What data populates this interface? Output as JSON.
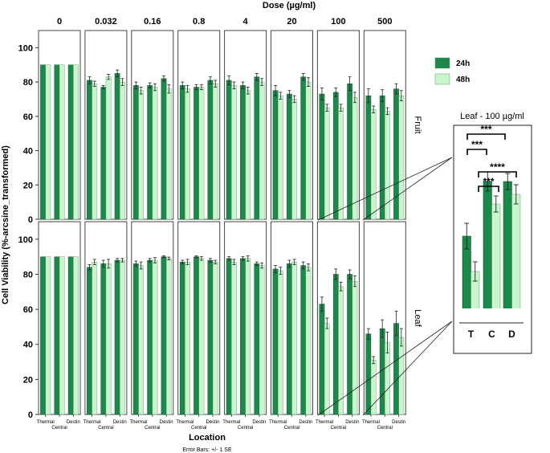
{
  "chart_data": {
    "type": "bar",
    "title": "Dose (µg/ml)",
    "xlabel": "Location",
    "ylabel": "Cell Viability (%-arcsine_transformed)",
    "footnote": "Error Bars: +/- 1 SE",
    "ylim": [
      0,
      110
    ],
    "yticks": [
      0,
      20,
      40,
      60,
      80,
      100
    ],
    "doses": [
      "0",
      "0.032",
      "0.16",
      "0.8",
      "4",
      "20",
      "100",
      "500"
    ],
    "categories": [
      "Thermal",
      "Central",
      "Destin"
    ],
    "strips": [
      "Fruit",
      "Leaf"
    ],
    "legend": {
      "items": [
        {
          "name": "24h",
          "color": "#1a8a4a"
        },
        {
          "name": "48h",
          "color": "#c9f5cd"
        }
      ]
    },
    "panels": {
      "Fruit": [
        {
          "dose": "0",
          "h24": [
            90,
            90,
            90
          ],
          "h48": [
            90,
            90,
            90
          ],
          "e24": [
            0,
            0,
            0
          ],
          "e48": [
            0,
            0,
            0
          ]
        },
        {
          "dose": "0.032",
          "h24": [
            81,
            77,
            85
          ],
          "h48": [
            79,
            83,
            80
          ],
          "e24": [
            2,
            1,
            2
          ],
          "e48": [
            1.5,
            1.5,
            2
          ]
        },
        {
          "dose": "0.16",
          "h24": [
            78,
            78,
            82
          ],
          "h48": [
            75,
            77,
            76
          ],
          "e24": [
            2,
            1.5,
            1.5
          ],
          "e48": [
            2,
            2,
            2.5
          ]
        },
        {
          "dose": "0.8",
          "h24": [
            78,
            77,
            81
          ],
          "h48": [
            76,
            77,
            79
          ],
          "e24": [
            2,
            1.5,
            2
          ],
          "e48": [
            2,
            1.5,
            2
          ]
        },
        {
          "dose": "4",
          "h24": [
            81,
            78,
            83
          ],
          "h48": [
            78,
            75,
            80
          ],
          "e24": [
            2.5,
            2,
            2
          ],
          "e48": [
            2,
            2,
            2
          ]
        },
        {
          "dose": "20",
          "h24": [
            75,
            73,
            83
          ],
          "h48": [
            72,
            70,
            80
          ],
          "e24": [
            3,
            2,
            2
          ],
          "e48": [
            2,
            2,
            2.5
          ]
        },
        {
          "dose": "100",
          "h24": [
            73,
            74,
            79
          ],
          "h48": [
            65,
            65,
            71
          ],
          "e24": [
            3.5,
            2.5,
            4
          ],
          "e48": [
            2,
            2,
            3
          ]
        },
        {
          "dose": "500",
          "h24": [
            72,
            72,
            76
          ],
          "h48": [
            64,
            63,
            72
          ],
          "e24": [
            4,
            3.5,
            3
          ],
          "e48": [
            2,
            2,
            3
          ]
        }
      ],
      "Leaf": [
        {
          "dose": "0",
          "h24": [
            90,
            90,
            90
          ],
          "h48": [
            90,
            90,
            90
          ],
          "e24": [
            0,
            0,
            0
          ],
          "e48": [
            0,
            0,
            0
          ]
        },
        {
          "dose": "0.032",
          "h24": [
            84,
            86,
            88
          ],
          "h48": [
            87,
            86,
            88
          ],
          "e24": [
            1.5,
            2,
            1
          ],
          "e48": [
            1.5,
            2.5,
            1
          ]
        },
        {
          "dose": "0.16",
          "h24": [
            86,
            88,
            90
          ],
          "h48": [
            85,
            88,
            89
          ],
          "e24": [
            1.5,
            1,
            0.5
          ],
          "e48": [
            2,
            1.5,
            0.8
          ]
        },
        {
          "dose": "0.8",
          "h24": [
            87,
            90,
            88
          ],
          "h48": [
            87,
            89,
            87
          ],
          "e24": [
            1,
            0.5,
            1
          ],
          "e48": [
            1.5,
            1,
            1
          ]
        },
        {
          "dose": "4",
          "h24": [
            89,
            89,
            86
          ],
          "h48": [
            87,
            89,
            85
          ],
          "e24": [
            1,
            1,
            1
          ],
          "e48": [
            1.5,
            1.5,
            1.5
          ]
        },
        {
          "dose": "20",
          "h24": [
            83,
            86,
            85
          ],
          "h48": [
            82,
            87,
            84
          ],
          "e24": [
            2,
            2,
            2
          ],
          "e48": [
            2,
            1.5,
            2
          ]
        },
        {
          "dose": "100",
          "h24": [
            63,
            80,
            80
          ],
          "h48": [
            52,
            73,
            76
          ],
          "e24": [
            4,
            3,
            2.5
          ],
          "e48": [
            3,
            2.5,
            3
          ]
        },
        {
          "dose": "500",
          "h24": [
            46,
            49,
            52
          ],
          "h48": [
            31,
            41,
            44
          ],
          "e24": [
            3,
            5,
            7
          ],
          "e48": [
            2,
            6,
            5
          ]
        }
      ]
    },
    "inset": {
      "title": "Leaf - 100 µg/ml",
      "categories": [
        "T",
        "C",
        "D"
      ],
      "h24": [
        63,
        80,
        80
      ],
      "h48": [
        52,
        73,
        76
      ],
      "e24": [
        4,
        3,
        2.5
      ],
      "e48": [
        3,
        2.5,
        3
      ],
      "ylim": [
        40,
        90
      ],
      "significance": [
        "***",
        "***",
        "****",
        "***"
      ]
    }
  }
}
